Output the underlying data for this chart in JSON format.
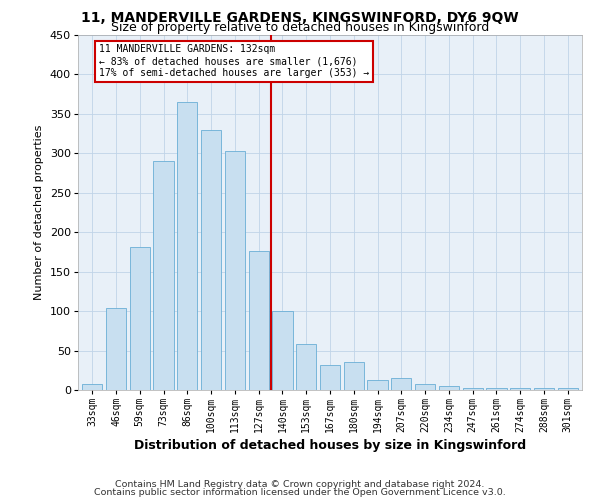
{
  "title": "11, MANDERVILLE GARDENS, KINGSWINFORD, DY6 9QW",
  "subtitle": "Size of property relative to detached houses in Kingswinford",
  "xlabel": "Distribution of detached houses by size in Kingswinford",
  "ylabel": "Number of detached properties",
  "categories": [
    "33sqm",
    "46sqm",
    "59sqm",
    "73sqm",
    "86sqm",
    "100sqm",
    "113sqm",
    "127sqm",
    "140sqm",
    "153sqm",
    "167sqm",
    "180sqm",
    "194sqm",
    "207sqm",
    "220sqm",
    "234sqm",
    "247sqm",
    "261sqm",
    "274sqm",
    "288sqm",
    "301sqm"
  ],
  "bar_values": [
    7,
    104,
    181,
    290,
    365,
    330,
    303,
    176,
    100,
    58,
    32,
    35,
    13,
    15,
    8,
    5,
    3,
    3,
    3,
    3,
    3
  ],
  "property_name": "11 MANDERVILLE GARDENS: 132sqm",
  "pct_smaller": 83,
  "n_smaller": 1676,
  "pct_larger_semi": 17,
  "n_larger_semi": 353,
  "bar_color": "#c8dff0",
  "bar_edge_color": "#6aaed6",
  "vline_color": "#cc0000",
  "vline_x": 7.5,
  "annotation_border_color": "#cc0000",
  "grid_color": "#c0d4e8",
  "bg_color": "#e8f0f8",
  "ylim": [
    0,
    450
  ],
  "yticks": [
    0,
    50,
    100,
    150,
    200,
    250,
    300,
    350,
    400,
    450
  ],
  "footer_line1": "Contains HM Land Registry data © Crown copyright and database right 2024.",
  "footer_line2": "Contains public sector information licensed under the Open Government Licence v3.0."
}
